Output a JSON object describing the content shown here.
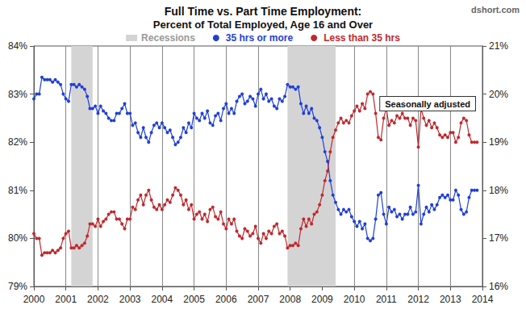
{
  "chart_data": {
    "type": "line",
    "title": "Full Time vs. Part Time Employment:",
    "subtitle": "Percent of Total Employed, Age 16 and Over",
    "source_label": "dshort.com",
    "annotation": "Seasonally adjusted",
    "grid": "x",
    "legend": "top",
    "marker": "circle",
    "x": [
      2000,
      2000.083,
      2000.167,
      2000.25,
      2000.333,
      2000.417,
      2000.5,
      2000.583,
      2000.667,
      2000.75,
      2000.833,
      2000.917,
      2001,
      2001.083,
      2001.167,
      2001.25,
      2001.333,
      2001.417,
      2001.5,
      2001.583,
      2001.667,
      2001.75,
      2001.833,
      2001.917,
      2002,
      2002.083,
      2002.167,
      2002.25,
      2002.333,
      2002.417,
      2002.5,
      2002.583,
      2002.667,
      2002.75,
      2002.833,
      2002.917,
      2003,
      2003.083,
      2003.167,
      2003.25,
      2003.333,
      2003.417,
      2003.5,
      2003.583,
      2003.667,
      2003.75,
      2003.833,
      2003.917,
      2004,
      2004.083,
      2004.167,
      2004.25,
      2004.333,
      2004.417,
      2004.5,
      2004.583,
      2004.667,
      2004.75,
      2004.833,
      2004.917,
      2005,
      2005.083,
      2005.167,
      2005.25,
      2005.333,
      2005.417,
      2005.5,
      2005.583,
      2005.667,
      2005.75,
      2005.833,
      2005.917,
      2006,
      2006.083,
      2006.167,
      2006.25,
      2006.333,
      2006.417,
      2006.5,
      2006.583,
      2006.667,
      2006.75,
      2006.833,
      2006.917,
      2007,
      2007.083,
      2007.167,
      2007.25,
      2007.333,
      2007.417,
      2007.5,
      2007.583,
      2007.667,
      2007.75,
      2007.833,
      2007.917,
      2008,
      2008.083,
      2008.167,
      2008.25,
      2008.333,
      2008.417,
      2008.5,
      2008.583,
      2008.667,
      2008.75,
      2008.833,
      2008.917,
      2009,
      2009.083,
      2009.167,
      2009.25,
      2009.333,
      2009.417,
      2009.5,
      2009.583,
      2009.667,
      2009.75,
      2009.833,
      2009.917,
      2010,
      2010.083,
      2010.167,
      2010.25,
      2010.333,
      2010.417,
      2010.5,
      2010.583,
      2010.667,
      2010.75,
      2010.833,
      2010.917,
      2011,
      2011.083,
      2011.167,
      2011.25,
      2011.333,
      2011.417,
      2011.5,
      2011.583,
      2011.667,
      2011.75,
      2011.833,
      2011.917,
      2012,
      2012.083,
      2012.167,
      2012.25,
      2012.333,
      2012.417,
      2012.5,
      2012.583,
      2012.667,
      2012.75,
      2012.833,
      2012.917,
      2013,
      2013.083,
      2013.167,
      2013.25,
      2013.333,
      2013.417,
      2013.5,
      2013.583,
      2013.667,
      2013.75,
      2013.833
    ],
    "xlim": [
      2000,
      2014
    ],
    "xticks": [
      2000,
      2001,
      2002,
      2003,
      2004,
      2005,
      2006,
      2007,
      2008,
      2009,
      2010,
      2011,
      2012,
      2013,
      2014
    ],
    "ylim": [
      79,
      84
    ],
    "yticks": [
      {
        "value": 79,
        "label": "79%"
      },
      {
        "value": 80,
        "label": "80%"
      },
      {
        "value": 81,
        "label": "81%"
      },
      {
        "value": 82,
        "label": "82%"
      },
      {
        "value": 83,
        "label": "83%"
      },
      {
        "value": 84,
        "label": "84%"
      }
    ],
    "y2lim": [
      16,
      21
    ],
    "y2ticks": [
      {
        "value": 16,
        "label": "16%"
      },
      {
        "value": 17,
        "label": "17%"
      },
      {
        "value": 18,
        "label": "18%"
      },
      {
        "value": 19,
        "label": "19%"
      },
      {
        "value": 20,
        "label": "20%"
      },
      {
        "value": 21,
        "label": "21%"
      }
    ],
    "recessions": {
      "name": "Recessions",
      "color": "#d4d4d4",
      "ranges": [
        [
          2001.167,
          2001.833
        ],
        [
          2007.917,
          2009.417
        ]
      ]
    },
    "series": [
      {
        "name": "35 hrs or more",
        "color": "#1f3fd9",
        "axis": "y",
        "values": [
          82.9,
          83.0,
          83.0,
          83.35,
          83.3,
          83.3,
          83.3,
          83.25,
          83.3,
          83.25,
          83.2,
          83.0,
          82.9,
          82.85,
          83.2,
          83.2,
          83.15,
          83.2,
          83.15,
          83.1,
          82.95,
          82.7,
          82.7,
          82.75,
          82.6,
          82.75,
          82.65,
          82.6,
          82.5,
          82.45,
          82.45,
          82.6,
          82.6,
          82.7,
          82.8,
          82.6,
          82.6,
          82.35,
          82.4,
          82.2,
          82.1,
          82.3,
          82.1,
          82.0,
          82.2,
          82.35,
          82.4,
          82.3,
          82.4,
          82.3,
          82.2,
          82.25,
          82.1,
          81.95,
          82.0,
          82.1,
          82.3,
          82.2,
          82.4,
          82.3,
          82.6,
          82.5,
          82.45,
          82.6,
          82.5,
          82.65,
          82.4,
          82.35,
          82.55,
          82.6,
          82.45,
          82.7,
          82.8,
          82.6,
          82.7,
          82.6,
          82.85,
          82.95,
          83.0,
          82.8,
          82.85,
          82.95,
          82.9,
          82.75,
          83.0,
          83.1,
          82.9,
          83.0,
          82.85,
          82.9,
          82.75,
          82.7,
          82.9,
          82.85,
          82.95,
          83.2,
          83.15,
          83.15,
          83.1,
          83.15,
          82.8,
          82.6,
          82.75,
          82.6,
          82.7,
          82.5,
          82.45,
          82.3,
          82.1,
          81.8,
          81.6,
          81.2,
          80.9,
          80.75,
          80.6,
          80.5,
          80.6,
          80.55,
          80.6,
          80.45,
          80.35,
          80.25,
          80.35,
          80.2,
          80.3,
          80.0,
          79.95,
          80.0,
          80.4,
          80.9,
          80.95,
          80.5,
          80.3,
          80.65,
          80.55,
          80.6,
          80.45,
          80.5,
          80.4,
          80.5,
          80.5,
          80.65,
          80.5,
          80.55,
          81.1,
          80.3,
          80.5,
          80.65,
          80.55,
          80.7,
          80.6,
          80.7,
          80.85,
          80.9,
          80.85,
          80.9,
          80.8,
          80.8,
          81.0,
          80.9,
          80.6,
          80.5,
          80.55,
          80.85,
          81.0,
          81.0,
          81.0
        ]
      },
      {
        "name": "Less than 35 hrs",
        "color": "#c0282d",
        "axis": "y2",
        "values": [
          17.1,
          17.0,
          17.0,
          16.65,
          16.7,
          16.7,
          16.7,
          16.75,
          16.7,
          16.75,
          16.8,
          17.0,
          17.1,
          17.15,
          16.8,
          16.8,
          16.85,
          16.8,
          16.85,
          16.9,
          17.05,
          17.3,
          17.3,
          17.25,
          17.4,
          17.25,
          17.35,
          17.4,
          17.5,
          17.55,
          17.55,
          17.4,
          17.4,
          17.3,
          17.2,
          17.4,
          17.4,
          17.65,
          17.6,
          17.8,
          17.9,
          17.7,
          17.9,
          18.0,
          17.8,
          17.65,
          17.6,
          17.7,
          17.6,
          17.7,
          17.8,
          17.75,
          17.9,
          18.05,
          18.0,
          17.9,
          17.7,
          17.8,
          17.6,
          17.7,
          17.4,
          17.5,
          17.55,
          17.4,
          17.5,
          17.35,
          17.6,
          17.65,
          17.45,
          17.4,
          17.55,
          17.3,
          17.2,
          17.4,
          17.3,
          17.4,
          17.15,
          17.05,
          17.0,
          17.2,
          17.15,
          17.05,
          17.1,
          17.25,
          17.0,
          16.9,
          17.1,
          17.0,
          17.15,
          17.1,
          17.25,
          17.3,
          17.1,
          17.15,
          17.05,
          16.8,
          16.85,
          16.85,
          16.9,
          16.85,
          17.2,
          17.4,
          17.25,
          17.4,
          17.3,
          17.5,
          17.55,
          17.7,
          17.9,
          18.2,
          18.4,
          18.8,
          19.1,
          19.25,
          19.4,
          19.5,
          19.4,
          19.45,
          19.4,
          19.55,
          19.65,
          19.75,
          19.65,
          19.8,
          19.7,
          20.0,
          20.05,
          20.0,
          19.6,
          19.1,
          19.05,
          19.5,
          19.7,
          19.35,
          19.45,
          19.4,
          19.55,
          19.5,
          19.6,
          19.5,
          19.5,
          19.35,
          19.5,
          19.45,
          18.9,
          19.7,
          19.5,
          19.35,
          19.45,
          19.3,
          19.4,
          19.3,
          19.15,
          19.1,
          19.15,
          19.1,
          19.2,
          19.2,
          19.0,
          19.1,
          19.4,
          19.5,
          19.45,
          19.15,
          19.0,
          19.0,
          19.0
        ]
      }
    ]
  }
}
